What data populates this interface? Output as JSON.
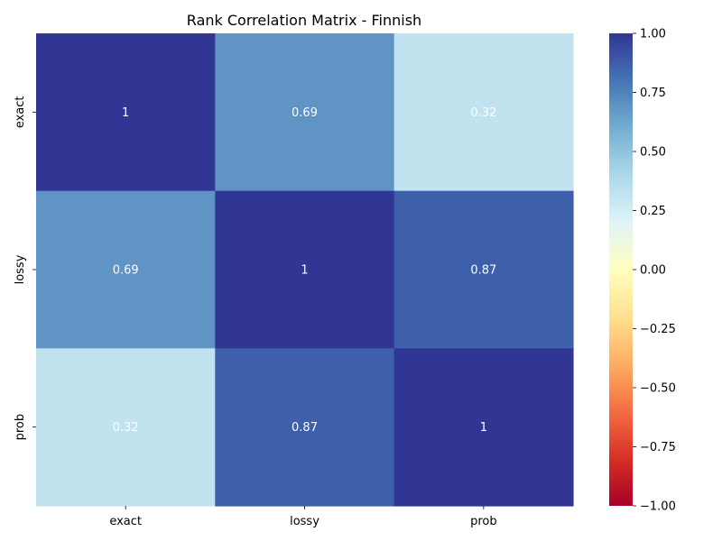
{
  "chart_data": {
    "type": "heatmap",
    "title": "Rank Correlation Matrix - Finnish",
    "xlabel": "",
    "ylabel": "",
    "x_categories": [
      "exact",
      "lossy",
      "prob"
    ],
    "y_categories": [
      "exact",
      "lossy",
      "prob"
    ],
    "values": [
      [
        1,
        0.69,
        0.32
      ],
      [
        0.69,
        1,
        0.87
      ],
      [
        0.32,
        0.87,
        1
      ]
    ],
    "cell_labels": [
      [
        "1",
        "0.69",
        "0.32"
      ],
      [
        "0.69",
        "1",
        "0.87"
      ],
      [
        "0.32",
        "0.87",
        "1"
      ]
    ],
    "colormap": "RdYlBu",
    "colormap_stops": [
      "#a50026",
      "#d73027",
      "#f46d43",
      "#fdae61",
      "#fee090",
      "#ffffbf",
      "#e0f3f8",
      "#abd9e9",
      "#74add1",
      "#4575b4",
      "#313695"
    ],
    "vmin": -1,
    "vmax": 1,
    "colorbar_ticks": [
      -1,
      -0.75,
      -0.5,
      -0.25,
      0,
      0.25,
      0.5,
      0.75,
      1
    ],
    "colorbar_tick_labels": [
      "−1.00",
      "−0.75",
      "−0.50",
      "−0.25",
      "0.00",
      "0.25",
      "0.50",
      "0.75",
      "1.00"
    ],
    "annotation_color": "#ffffff",
    "grid": false
  }
}
